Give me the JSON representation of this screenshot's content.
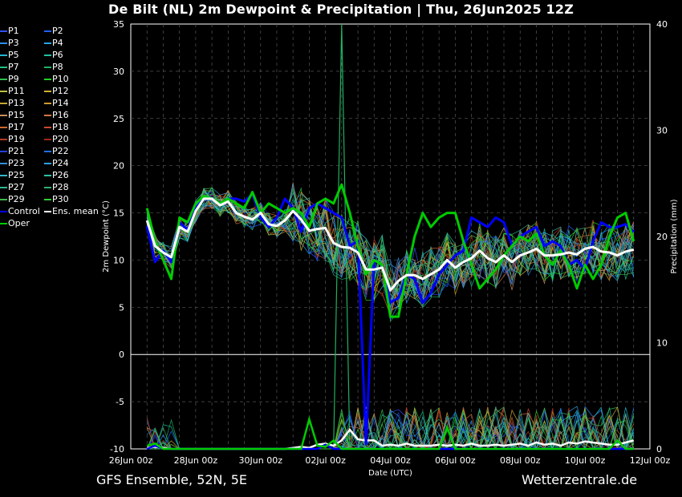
{
  "title": "De Bilt  (NL)  2m Dewpoint & Precipitation | Thu, 26Jun2025 12Z",
  "footer": {
    "model": "GFS Ensemble, 52N, 5E",
    "site": "Wetterzentrale.de"
  },
  "legend": [
    {
      "label": "P1",
      "color": "#3050ff"
    },
    {
      "label": "P2",
      "color": "#2060ff"
    },
    {
      "label": "P3",
      "color": "#2a8fff"
    },
    {
      "label": "P4",
      "color": "#26a6e8"
    },
    {
      "label": "P5",
      "color": "#20b8d0"
    },
    {
      "label": "P6",
      "color": "#20c0a0"
    },
    {
      "label": "P7",
      "color": "#20c080"
    },
    {
      "label": "P8",
      "color": "#20b060"
    },
    {
      "label": "P9",
      "color": "#30c050"
    },
    {
      "label": "P10",
      "color": "#20d020"
    },
    {
      "label": "P11",
      "color": "#c0c040"
    },
    {
      "label": "P12",
      "color": "#d0b030"
    },
    {
      "label": "P13",
      "color": "#c8a830"
    },
    {
      "label": "P14",
      "color": "#d09a30"
    },
    {
      "label": "P15",
      "color": "#c89060"
    },
    {
      "label": "P16",
      "color": "#d07840"
    },
    {
      "label": "P17",
      "color": "#d06830"
    },
    {
      "label": "P18",
      "color": "#c84a30"
    },
    {
      "label": "P19",
      "color": "#b83a28"
    },
    {
      "label": "P20",
      "color": "#a02818"
    },
    {
      "label": "P21",
      "color": "#2040e0"
    },
    {
      "label": "P22",
      "color": "#2070e0"
    },
    {
      "label": "P23",
      "color": "#3090e0"
    },
    {
      "label": "P24",
      "color": "#30a0e0"
    },
    {
      "label": "P25",
      "color": "#30b8c8"
    },
    {
      "label": "P26",
      "color": "#30c0a8"
    },
    {
      "label": "P27",
      "color": "#30b890"
    },
    {
      "label": "P28",
      "color": "#30b070"
    },
    {
      "label": "P29",
      "color": "#40b850"
    },
    {
      "label": "P30",
      "color": "#30d030"
    },
    {
      "label": "Control",
      "color": "#0000ff"
    },
    {
      "label": "Ens. mean",
      "color": "#ffffff"
    },
    {
      "label": "Oper",
      "color": "#00cc00"
    }
  ],
  "chart_data": {
    "type": "line",
    "xlabel": "Date (UTC)",
    "ylabel": "2m Dewpoint (°C)",
    "y2label": "Precipitation (mm)",
    "ylim": [
      -10,
      35
    ],
    "y2lim": [
      0,
      40
    ],
    "yticks": [
      35,
      30,
      25,
      20,
      15,
      10,
      5,
      0,
      -5,
      -10
    ],
    "y2ticks": [
      40,
      30,
      20,
      10,
      0
    ],
    "xlim_hours": [
      0,
      384
    ],
    "xticks": [
      "26Jun 00z",
      "28Jun 00z",
      "30Jun 00z",
      "02Jul 00z",
      "04Jul 00z",
      "06Jul 00z",
      "08Jul 00z",
      "10Jul 00z",
      "12Jul 00z"
    ],
    "grid": true,
    "step_hours": 6,
    "start_hour": 12,
    "series": [
      {
        "name": "Ens. mean",
        "color": "#ffffff",
        "values": [
          14.2,
          11.5,
          10.8,
          10.3,
          13.5,
          13.0,
          15.2,
          16.5,
          16.5,
          15.8,
          16.2,
          15.0,
          14.6,
          14.3,
          15.0,
          13.8,
          13.6,
          14.2,
          15.2,
          14.3,
          13.1,
          13.3,
          13.4,
          11.8,
          11.4,
          11.3,
          10.8,
          9.0,
          9.0,
          9.2,
          6.8,
          7.8,
          8.4,
          8.4,
          8.0,
          8.5,
          9.0,
          10.0,
          9.2,
          9.8,
          10.2,
          11.0,
          10.2,
          9.8,
          10.5,
          9.8,
          10.5,
          10.8,
          11.2,
          10.5,
          10.5,
          10.6,
          10.8,
          10.6,
          11.2,
          11.4,
          10.9,
          10.8,
          10.5,
          10.9,
          11.1
        ]
      },
      {
        "name": "Control",
        "color": "#0000ff",
        "values": [
          13.6,
          9.8,
          11.0,
          9.8,
          14.0,
          13.2,
          15.5,
          16.5,
          16.5,
          16.0,
          16.5,
          16.5,
          16.2,
          17.0,
          14.5,
          13.5,
          14.5,
          16.5,
          15.5,
          13.0,
          15.5,
          16.0,
          15.5,
          15.0,
          14.5,
          11.5,
          12.0,
          -9.5,
          10.0,
          9.5,
          5.5,
          6.0,
          8.5,
          8.0,
          5.5,
          6.5,
          8.5,
          9.5,
          10.5,
          11.0,
          14.5,
          14.0,
          13.5,
          14.5,
          14.0,
          11.5,
          12.5,
          13.0,
          13.5,
          11.5,
          12.0,
          11.5,
          9.5,
          10.0,
          9.0,
          12.0,
          14.0,
          13.5,
          13.5,
          13.8,
          13.0
        ]
      },
      {
        "name": "Oper",
        "color": "#00cc00",
        "values": [
          15.5,
          12.0,
          10.0,
          8.0,
          14.5,
          14.0,
          16.0,
          16.8,
          16.5,
          16.0,
          16.5,
          16.0,
          15.5,
          17.2,
          15.0,
          16.0,
          15.5,
          15.0,
          15.5,
          15.0,
          13.5,
          16.0,
          16.5,
          16.0,
          18.0,
          15.0,
          11.5,
          8.5,
          10.0,
          9.5,
          4.0,
          4.0,
          8.5,
          12.5,
          15.0,
          13.5,
          14.5,
          15.0,
          15.0,
          12.0,
          9.5,
          7.0,
          8.0,
          9.0,
          10.5,
          11.5,
          12.5,
          12.0,
          12.8,
          10.5,
          9.5,
          11.0,
          9.5,
          7.0,
          9.5,
          8.0,
          9.5,
          12.5,
          14.5,
          15.0,
          12.0
        ]
      }
    ],
    "precip_series": [
      {
        "name": "Ens. mean",
        "color": "#ffffff",
        "values": [
          0.1,
          0.2,
          0.1,
          0.0,
          0.0,
          0.0,
          0.0,
          0.0,
          0.0,
          0.0,
          0.0,
          0.0,
          0.0,
          0.0,
          0.0,
          0.0,
          0.0,
          0.0,
          0.1,
          0.2,
          0.1,
          0.4,
          0.5,
          0.3,
          0.8,
          1.8,
          0.9,
          0.8,
          0.8,
          0.3,
          0.4,
          0.3,
          0.5,
          0.3,
          0.3,
          0.3,
          0.4,
          0.3,
          0.4,
          0.3,
          0.5,
          0.3,
          0.3,
          0.4,
          0.3,
          0.4,
          0.5,
          0.3,
          0.6,
          0.4,
          0.5,
          0.3,
          0.6,
          0.5,
          0.7,
          0.6,
          0.5,
          0.4,
          0.4,
          0.6,
          0.8
        ]
      },
      {
        "name": "Control",
        "color": "#0000ff",
        "values": [
          0.0,
          0.3,
          0.0,
          0.0,
          0.0,
          0.0,
          0.0,
          0.0,
          0.0,
          0.0,
          0.0,
          0.0,
          0.0,
          0.0,
          0.0,
          0.0,
          0.0,
          0.0,
          0.0,
          0.0,
          0.0,
          0.0,
          0.4,
          0.0,
          0.0,
          0.0,
          0.0,
          0.0,
          0.0,
          0.0,
          0.0,
          0.0,
          0.0,
          0.0,
          0.0,
          0.0,
          0.0,
          0.0,
          0.0,
          0.0,
          0.0,
          0.0,
          0.0,
          0.0,
          0.0,
          0.0,
          0.0,
          0.0,
          0.0,
          0.0,
          0.0,
          0.0,
          0.0,
          0.0,
          0.0,
          0.0,
          0.0,
          0.0,
          0.0,
          0.0,
          0.0
        ]
      },
      {
        "name": "Oper",
        "color": "#00cc00",
        "values": [
          0.3,
          0.5,
          0.0,
          0.0,
          0.0,
          0.0,
          0.0,
          0.0,
          0.0,
          0.0,
          0.0,
          0.0,
          0.0,
          0.0,
          0.0,
          0.0,
          0.0,
          0.0,
          0.0,
          0.0,
          2.8,
          0.3,
          0.2,
          0.8,
          0.0,
          0.0,
          0.0,
          0.0,
          0.0,
          0.0,
          0.0,
          0.0,
          0.0,
          0.0,
          0.0,
          0.0,
          0.0,
          2.0,
          0.0,
          0.0,
          0.0,
          0.0,
          0.0,
          0.0,
          0.0,
          0.0,
          0.0,
          0.0,
          0.0,
          0.0,
          0.0,
          0.0,
          0.0,
          0.0,
          0.0,
          0.0,
          0.0,
          0.0,
          0.8,
          0.0,
          0.0
        ]
      }
    ],
    "members_summary": {
      "dewpoint_band_after_04Jul": [
        5,
        17
      ],
      "precip_spike_mm": 40
    }
  }
}
